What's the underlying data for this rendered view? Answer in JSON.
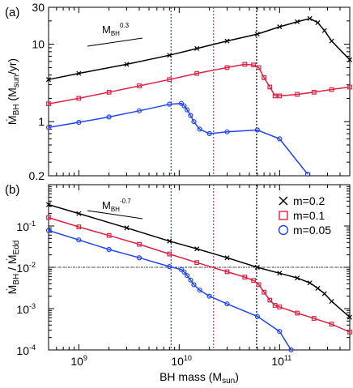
{
  "chart_data": [
    {
      "panel": "(a)",
      "type": "line",
      "ylabel_parts": {
        "main": "Ṁ",
        "sub": "BH",
        "unit_open": " (M",
        "unit_sub": "sun",
        "unit_close": "/yr)"
      },
      "xscale": "log",
      "yscale": "log",
      "xlim": [
        500000000.0,
        500000000000.0
      ],
      "ylim": [
        0.2,
        30
      ],
      "ytick_labels": [
        {
          "v": 0.2,
          "t": "0.2"
        },
        {
          "v": 1,
          "t": "1"
        },
        {
          "v": 10,
          "t": "10"
        },
        {
          "v": 30,
          "t": "30"
        }
      ],
      "annotation": {
        "text": "M",
        "sub": "BH",
        "sup": "0.3"
      },
      "vlines": [
        {
          "x": 8300000000.0,
          "color": "#2244ee"
        },
        {
          "x": 22000000000.0,
          "color": "#dd2244"
        },
        {
          "x": 59000000000.0,
          "color": "#000000"
        }
      ],
      "series": [
        {
          "key": "m02",
          "x": [
            500000000.0,
            1000000000.0,
            3000000000.0,
            8000000000.0,
            15000000000.0,
            30000000000.0,
            60000000000.0,
            100000000000.0,
            150000000000.0,
            200000000000.0,
            240000000000.0,
            280000000000.0,
            330000000000.0,
            500000000000.0
          ],
          "y": [
            3.5,
            4.2,
            5.5,
            7.2,
            8.8,
            11.0,
            13.5,
            16.8,
            19.5,
            21.5,
            19.0,
            15.0,
            11.0,
            6.3
          ]
        },
        {
          "key": "m01",
          "x": [
            500000000.0,
            1000000000.0,
            2000000000.0,
            4000000000.0,
            8000000000.0,
            15000000000.0,
            30000000000.0,
            45000000000.0,
            55000000000.0,
            62000000000.0,
            70000000000.0,
            80000000000.0,
            90000000000.0,
            100000000000.0,
            150000000000.0,
            220000000000.0,
            330000000000.0,
            500000000000.0
          ],
          "y": [
            1.7,
            2.0,
            2.4,
            2.9,
            3.5,
            4.2,
            5.0,
            5.5,
            5.4,
            5.0,
            3.7,
            2.8,
            2.15,
            2.15,
            2.25,
            2.4,
            2.6,
            2.8
          ]
        },
        {
          "key": "m005",
          "x": [
            500000000.0,
            1000000000.0,
            2000000000.0,
            4000000000.0,
            8000000000.0,
            10500000000.0,
            11200000000.0,
            12000000000.0,
            13000000000.0,
            14000000000.0,
            16000000000.0,
            20000000000.0,
            30000000000.0,
            60000000000.0,
            100000000000.0,
            190000000000.0
          ],
          "y": [
            0.84,
            0.98,
            1.15,
            1.38,
            1.68,
            1.72,
            1.6,
            1.42,
            1.2,
            1.0,
            0.8,
            0.7,
            0.74,
            0.78,
            0.6,
            0.21
          ]
        }
      ]
    },
    {
      "panel": "(b)",
      "type": "line",
      "xlabel_parts": {
        "main": "BH mass (M",
        "sub": "sun",
        "close": ")"
      },
      "ylabel_parts": {
        "a": "Ṁ",
        "a_sub": "BH",
        "mid": " / ",
        "b": "Ṁ",
        "b_sub": "Edd"
      },
      "xscale": "log",
      "yscale": "log",
      "xlim": [
        500000000.0,
        500000000000.0
      ],
      "ylim": [
        0.0001,
        1
      ],
      "xtick_labels": [
        {
          "v": 1000000000.0,
          "m": "10",
          "e": "9"
        },
        {
          "v": 10000000000.0,
          "m": "10",
          "e": "10"
        },
        {
          "v": 100000000000.0,
          "m": "10",
          "e": "11"
        }
      ],
      "ytick_labels": [
        {
          "v": 0.0001,
          "m": "10",
          "e": "-4"
        },
        {
          "v": 0.001,
          "m": "10",
          "e": "-3"
        },
        {
          "v": 0.01,
          "m": "10",
          "e": "-2"
        },
        {
          "v": 0.1,
          "m": "10",
          "e": "-1"
        }
      ],
      "hline": 0.01,
      "annotation": {
        "text": "M",
        "sub": "BH",
        "sup": "-0.7"
      },
      "vlines": [
        {
          "x": 8300000000.0,
          "color": "#2244ee"
        },
        {
          "x": 22000000000.0,
          "color": "#dd2244"
        },
        {
          "x": 59000000000.0,
          "color": "#000000"
        }
      ],
      "legend": {
        "placement": "top-right",
        "entries": [
          {
            "label": "m=0.2",
            "marker": "x",
            "color": "#000000"
          },
          {
            "label": "m=0.1",
            "marker": "square",
            "color": "#dd2244"
          },
          {
            "label": "m=0.05",
            "marker": "circle",
            "color": "#2244ee"
          }
        ]
      },
      "series": [
        {
          "key": "m02",
          "x": [
            500000000.0,
            1000000000.0,
            3000000000.0,
            8000000000.0,
            15000000000.0,
            30000000000.0,
            60000000000.0,
            100000000000.0,
            150000000000.0,
            200000000000.0,
            240000000000.0,
            280000000000.0,
            330000000000.0,
            500000000000.0
          ],
          "y": [
            0.33,
            0.2,
            0.09,
            0.043,
            0.028,
            0.017,
            0.01,
            0.0072,
            0.0055,
            0.0042,
            0.0031,
            0.0023,
            0.0015,
            0.00062
          ]
        },
        {
          "key": "m01",
          "x": [
            500000000.0,
            1000000000.0,
            2000000000.0,
            4000000000.0,
            8000000000.0,
            15000000000.0,
            30000000000.0,
            45000000000.0,
            55000000000.0,
            62000000000.0,
            70000000000.0,
            80000000000.0,
            90000000000.0,
            100000000000.0,
            150000000000.0,
            220000000000.0,
            330000000000.0,
            500000000000.0
          ],
          "y": [
            0.16,
            0.095,
            0.059,
            0.036,
            0.021,
            0.013,
            0.0078,
            0.0058,
            0.0048,
            0.0038,
            0.0025,
            0.0016,
            0.0012,
            0.0011,
            0.00078,
            0.00058,
            0.00042,
            0.00027
          ]
        },
        {
          "key": "m005",
          "x": [
            500000000.0,
            1000000000.0,
            2000000000.0,
            4000000000.0,
            8000000000.0,
            10500000000.0,
            11200000000.0,
            12000000000.0,
            13000000000.0,
            14000000000.0,
            16000000000.0,
            20000000000.0,
            30000000000.0,
            60000000000.0,
            100000000000.0,
            130000000000.0
          ],
          "y": [
            0.078,
            0.046,
            0.027,
            0.017,
            0.0104,
            0.0088,
            0.0077,
            0.0063,
            0.0049,
            0.0038,
            0.0028,
            0.002,
            0.0013,
            0.00065,
            0.00028,
            0.0001
          ]
        }
      ]
    }
  ],
  "colors": {
    "m02": "#000000",
    "m01": "#dd2244",
    "m005": "#2244ee"
  },
  "markers": {
    "m02": "x",
    "m01": "square",
    "m005": "circle"
  }
}
